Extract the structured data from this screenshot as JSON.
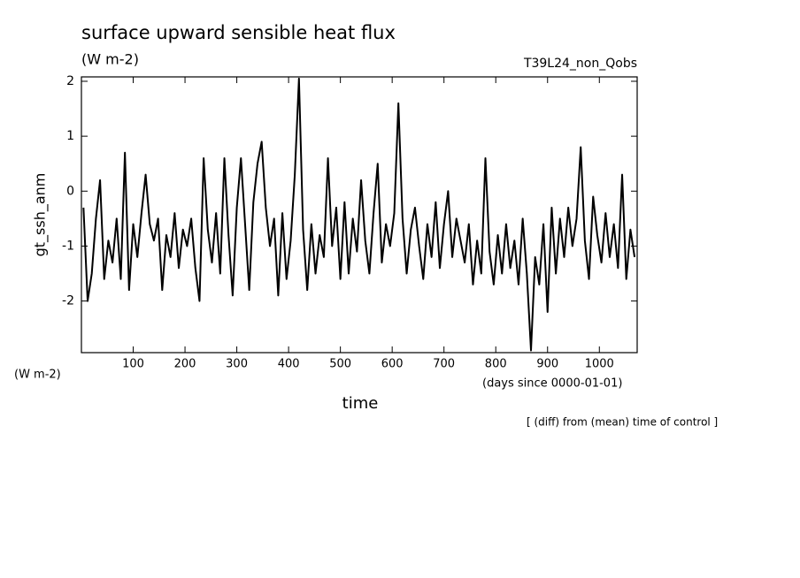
{
  "chart_data": {
    "type": "line",
    "title": "surface upward sensible heat flux",
    "subtitle": "(W m-2)",
    "run_label": "T39L24_non_Qobs",
    "ylabel": "gt_ssh_anm",
    "yunit": "(W m-2)",
    "xunit": "(days since 0000-01-01)",
    "xlabel": "time",
    "note": "[ (diff) from (mean) time of control ]",
    "color": "#000000",
    "x": [
      4,
      12,
      20,
      28,
      36,
      44,
      52,
      60,
      68,
      76,
      84,
      92,
      100,
      108,
      116,
      124,
      132,
      140,
      148,
      156,
      164,
      172,
      180,
      188,
      196,
      204,
      212,
      220,
      228,
      236,
      244,
      252,
      260,
      268,
      276,
      284,
      292,
      300,
      308,
      316,
      324,
      332,
      340,
      348,
      356,
      364,
      372,
      380,
      388,
      396,
      404,
      412,
      420,
      428,
      436,
      444,
      452,
      460,
      468,
      476,
      484,
      492,
      500,
      508,
      516,
      524,
      532,
      540,
      548,
      556,
      564,
      572,
      580,
      588,
      596,
      604,
      612,
      620,
      628,
      636,
      644,
      652,
      660,
      668,
      676,
      684,
      692,
      700,
      708,
      716,
      724,
      732,
      740,
      748,
      756,
      764,
      772,
      780,
      788,
      796,
      804,
      812,
      820,
      828,
      836,
      844,
      852,
      860,
      868,
      876,
      884,
      892,
      900,
      908,
      916,
      924,
      932,
      940,
      948,
      956,
      964,
      972,
      980,
      988,
      996,
      1004,
      1012,
      1020,
      1028,
      1036,
      1044,
      1052,
      1060,
      1068
    ],
    "values": [
      -0.3,
      -2.0,
      -1.5,
      -0.5,
      0.2,
      -1.6,
      -0.9,
      -1.3,
      -0.5,
      -1.6,
      0.7,
      -1.8,
      -0.6,
      -1.2,
      -0.4,
      0.3,
      -0.6,
      -0.9,
      -0.5,
      -1.8,
      -0.8,
      -1.2,
      -0.4,
      -1.4,
      -0.7,
      -1.0,
      -0.5,
      -1.4,
      -2.0,
      0.6,
      -0.7,
      -1.3,
      -0.4,
      -1.5,
      0.6,
      -0.8,
      -1.9,
      -0.3,
      0.6,
      -0.6,
      -1.8,
      -0.2,
      0.5,
      0.9,
      -0.3,
      -1.0,
      -0.5,
      -1.9,
      -0.4,
      -1.6,
      -0.9,
      0.3,
      2.05,
      -0.7,
      -1.8,
      -0.6,
      -1.5,
      -0.8,
      -1.2,
      0.6,
      -1.0,
      -0.3,
      -1.6,
      -0.2,
      -1.5,
      -0.5,
      -1.1,
      0.2,
      -0.9,
      -1.5,
      -0.4,
      0.5,
      -1.3,
      -0.6,
      -1.0,
      -0.4,
      1.6,
      -0.5,
      -1.5,
      -0.7,
      -0.3,
      -1.0,
      -1.6,
      -0.6,
      -1.2,
      -0.2,
      -1.4,
      -0.6,
      0.0,
      -1.2,
      -0.5,
      -0.9,
      -1.3,
      -0.6,
      -1.7,
      -0.9,
      -1.5,
      0.6,
      -1.1,
      -1.7,
      -0.8,
      -1.5,
      -0.6,
      -1.4,
      -0.9,
      -1.7,
      -0.5,
      -1.5,
      -2.9,
      -1.2,
      -1.7,
      -0.6,
      -2.2,
      -0.3,
      -1.5,
      -0.5,
      -1.2,
      -0.3,
      -1.0,
      -0.5,
      0.8,
      -0.9,
      -1.6,
      -0.1,
      -0.8,
      -1.3,
      -0.4,
      -1.2,
      -0.6,
      -1.4,
      0.3,
      -1.6,
      -0.7,
      -1.2
    ],
    "xlim": [
      0,
      1073
    ],
    "ylim": [
      -2.94,
      2.08
    ],
    "xticks": [
      100,
      200,
      300,
      400,
      500,
      600,
      700,
      800,
      900,
      1000
    ],
    "yticks": [
      -2,
      -1,
      0,
      1,
      2
    ]
  }
}
